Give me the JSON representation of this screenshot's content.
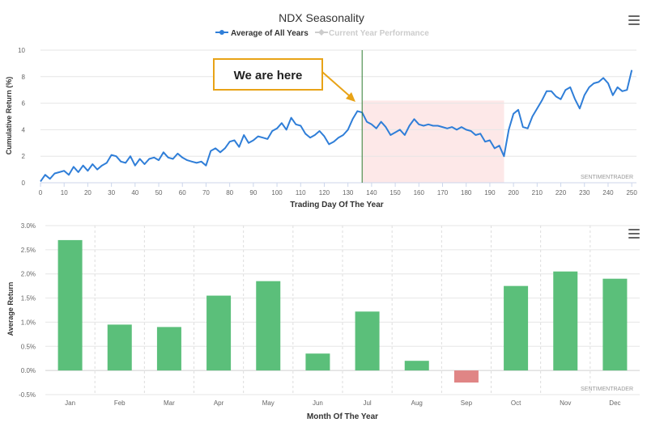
{
  "top_chart": {
    "title": "NDX Seasonality",
    "legend": [
      {
        "label": "Average of All Years",
        "color": "#2f7ed8",
        "active": true
      },
      {
        "label": "Current Year Performance",
        "color": "#cccccc",
        "active": false
      }
    ],
    "xlabel": "Trading Day Of The Year",
    "ylabel": "Cumulative Return (%)",
    "credit": "SENTIMENTRADER",
    "annotation": "We are here",
    "marker_day": 136,
    "shaded_range": [
      136,
      196
    ],
    "shaded_color": "#fde8e8",
    "marker_color": "#2e7d32",
    "annotation_color": "#e8a317"
  },
  "bottom_chart": {
    "xlabel": "Month Of The Year",
    "ylabel": "Average Return",
    "credit": "SENTIMENTRADER",
    "positive_color": "#5bbf7a",
    "negative_color": "#e08585"
  },
  "chart_data": [
    {
      "type": "line",
      "title": "NDX Seasonality",
      "xlabel": "Trading Day Of The Year",
      "ylabel": "Cumulative Return (%)",
      "xlim": [
        0,
        252
      ],
      "ylim": [
        0,
        10
      ],
      "xticks": [
        0,
        10,
        20,
        30,
        40,
        50,
        60,
        70,
        80,
        90,
        100,
        110,
        120,
        130,
        140,
        150,
        160,
        170,
        180,
        190,
        200,
        210,
        220,
        230,
        240,
        250
      ],
      "yticks": [
        0,
        2,
        4,
        6,
        8,
        10
      ],
      "series": [
        {
          "name": "Average of All Years",
          "x": [
            0,
            2,
            4,
            6,
            8,
            10,
            12,
            14,
            16,
            18,
            20,
            22,
            24,
            26,
            28,
            30,
            32,
            34,
            36,
            38,
            40,
            42,
            44,
            46,
            48,
            50,
            52,
            54,
            56,
            58,
            60,
            62,
            64,
            66,
            68,
            70,
            72,
            74,
            76,
            78,
            80,
            82,
            84,
            86,
            88,
            90,
            92,
            94,
            96,
            98,
            100,
            102,
            104,
            106,
            108,
            110,
            112,
            114,
            116,
            118,
            120,
            122,
            124,
            126,
            128,
            130,
            132,
            134,
            136,
            138,
            140,
            142,
            144,
            146,
            148,
            150,
            152,
            154,
            156,
            158,
            160,
            162,
            164,
            166,
            168,
            170,
            172,
            174,
            176,
            178,
            180,
            182,
            184,
            186,
            188,
            190,
            192,
            194,
            196,
            198,
            200,
            202,
            204,
            206,
            208,
            210,
            212,
            214,
            216,
            218,
            220,
            222,
            224,
            226,
            228,
            230,
            232,
            234,
            236,
            238,
            240,
            242,
            244,
            246,
            248,
            250
          ],
          "y": [
            0.1,
            0.6,
            0.3,
            0.7,
            0.8,
            0.9,
            0.6,
            1.2,
            0.8,
            1.3,
            0.9,
            1.4,
            1.0,
            1.3,
            1.5,
            2.1,
            2.0,
            1.6,
            1.5,
            2.0,
            1.3,
            1.8,
            1.4,
            1.8,
            1.9,
            1.7,
            2.3,
            1.9,
            1.8,
            2.2,
            1.9,
            1.7,
            1.6,
            1.5,
            1.6,
            1.3,
            2.4,
            2.6,
            2.3,
            2.6,
            3.1,
            3.2,
            2.7,
            3.6,
            3.0,
            3.2,
            3.5,
            3.4,
            3.3,
            3.9,
            4.1,
            4.5,
            4.0,
            4.9,
            4.4,
            4.3,
            3.7,
            3.4,
            3.6,
            3.9,
            3.5,
            2.9,
            3.1,
            3.4,
            3.6,
            4.0,
            4.8,
            5.4,
            5.3,
            4.6,
            4.4,
            4.1,
            4.6,
            4.2,
            3.6,
            3.8,
            4.0,
            3.6,
            4.3,
            4.8,
            4.4,
            4.3,
            4.4,
            4.3,
            4.3,
            4.2,
            4.1,
            4.2,
            4.0,
            4.2,
            4.0,
            3.9,
            3.6,
            3.7,
            3.1,
            3.2,
            2.6,
            2.8,
            2.0,
            4.0,
            5.2,
            5.5,
            4.2,
            4.1,
            5.0,
            5.6,
            6.2,
            6.9,
            6.9,
            6.5,
            6.3,
            7.0,
            7.2,
            6.3,
            5.6,
            6.6,
            7.2,
            7.5,
            7.6,
            7.9,
            7.5,
            6.6,
            7.2,
            6.9,
            7.0,
            8.5
          ]
        }
      ]
    },
    {
      "type": "bar",
      "xlabel": "Month Of The Year",
      "ylabel": "Average Return",
      "categories": [
        "Jan",
        "Feb",
        "Mar",
        "Apr",
        "May",
        "Jun",
        "Jul",
        "Aug",
        "Sep",
        "Oct",
        "Nov",
        "Dec"
      ],
      "values": [
        2.7,
        0.95,
        0.9,
        1.55,
        1.85,
        0.35,
        1.22,
        0.2,
        -0.25,
        1.75,
        2.05,
        1.9
      ],
      "ylim": [
        -0.5,
        3.0
      ],
      "yticks": [
        "-0.5%",
        "0.0%",
        "0.5%",
        "1.0%",
        "1.5%",
        "2.0%",
        "2.5%",
        "3.0%"
      ]
    }
  ]
}
